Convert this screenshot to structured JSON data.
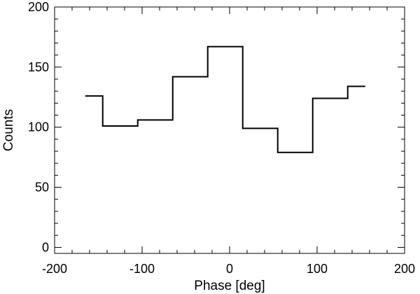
{
  "chart_data": {
    "type": "line",
    "step": "histogram",
    "xlabel": "Phase [deg]",
    "ylabel": "Counts",
    "xlim": [
      -200,
      200
    ],
    "ylim": [
      -5,
      200
    ],
    "xticks": [
      -200,
      -100,
      0,
      100,
      200
    ],
    "yticks": [
      0,
      50,
      100,
      150,
      200
    ],
    "bin_edges": [
      -165,
      -145,
      -105,
      -65,
      -25,
      15,
      55,
      95,
      135,
      155
    ],
    "values": [
      126,
      101,
      106,
      142,
      167,
      99,
      79,
      124,
      134
    ],
    "grid": false,
    "line_color": "#000000"
  }
}
